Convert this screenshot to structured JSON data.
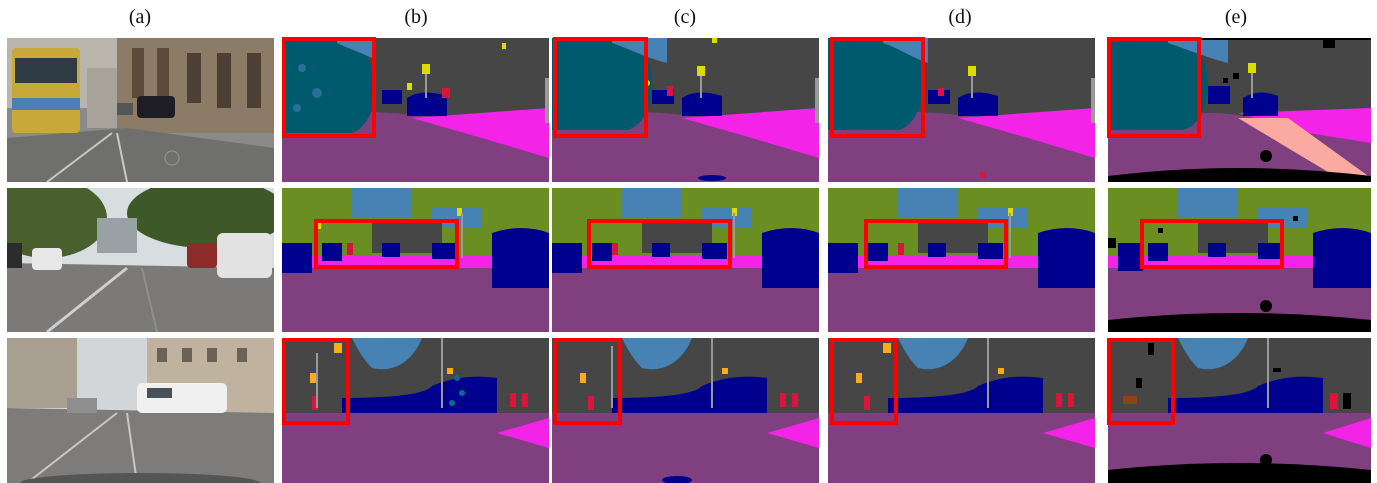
{
  "figure": {
    "column_labels": [
      "(a)",
      "(b)",
      "(c)",
      "(d)",
      "(e)"
    ]
  },
  "palette": {
    "road": "#804080",
    "sidewalk": "#f423e8",
    "building": "#464646",
    "vegetation": "#6b8e23",
    "sky": "#4682b4",
    "car": "#00008e",
    "truck_bus": "#003c64",
    "person": "#dc143c",
    "traffic_sign": "#dcdc00",
    "traffic_light": "#faaa1e",
    "pole": "#999999",
    "terrain": "#faaaa0",
    "void": "#000000",
    "highlight": "#ff0000"
  }
}
